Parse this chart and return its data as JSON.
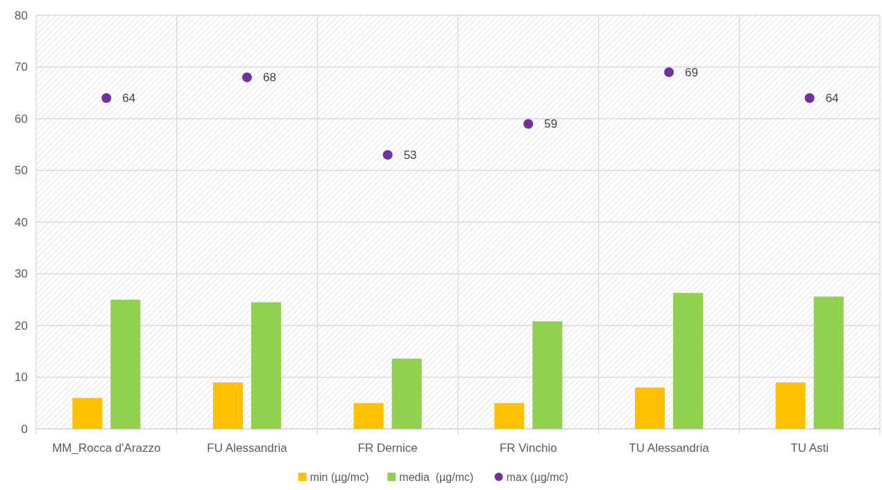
{
  "chart_data": {
    "type": "bar",
    "categories": [
      "MM_Rocca d'Arazzo",
      "FU Alessandria",
      "FR Dernice",
      "FR Vinchio",
      "TU Alessandria",
      "TU Asti"
    ],
    "series": [
      {
        "name": "min (µg/mc)",
        "color": "#ffc000",
        "values": [
          6,
          9,
          5,
          5,
          8,
          9
        ]
      },
      {
        "name": "media  (µg/mc)",
        "color": "#92d050",
        "values": [
          25,
          24.5,
          13.6,
          20.8,
          26.3,
          25.6
        ]
      },
      {
        "name": "max (µg/mc)",
        "type": "scatter",
        "color": "#7030a0",
        "values": [
          64,
          68,
          53,
          59,
          69,
          64
        ],
        "value_labels": [
          "64",
          "68",
          "53",
          "59",
          "69",
          "64"
        ]
      }
    ],
    "ylim": [
      0,
      80
    ],
    "yticks": [
      0,
      10,
      20,
      30,
      40,
      50,
      60,
      70,
      80
    ],
    "grid": true,
    "legend": "bottom",
    "marker": "circle"
  }
}
